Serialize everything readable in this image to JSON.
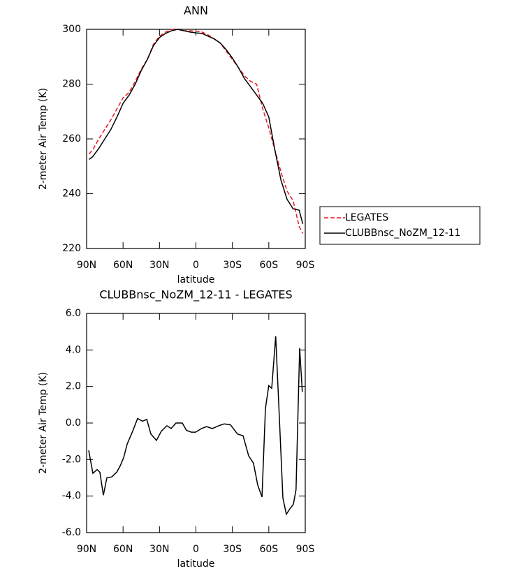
{
  "chart_data": [
    {
      "type": "line",
      "title": "ANN",
      "xlabel": "latitude",
      "ylabel": "2-meter Air Temp (K)",
      "x": [
        88,
        85,
        80,
        75,
        70,
        65,
        60,
        55,
        50,
        45,
        40,
        35,
        30,
        25,
        20,
        15,
        10,
        5,
        0,
        -5,
        -10,
        -15,
        -20,
        -25,
        -30,
        -35,
        -40,
        -45,
        -50,
        -55,
        -60,
        -65,
        -70,
        -75,
        -80,
        -85,
        -88
      ],
      "series": [
        {
          "name": "LEGATES",
          "color": "#e8191e",
          "dash": true,
          "values": [
            254.5,
            256,
            260,
            263.5,
            267,
            271,
            275,
            277,
            281,
            285.5,
            289,
            294.5,
            297.5,
            299,
            300,
            300,
            299.5,
            299.5,
            299.3,
            299,
            298,
            296.5,
            295,
            292,
            289,
            286,
            283,
            281,
            280,
            271,
            264,
            256,
            248,
            241,
            237.5,
            228,
            225.5
          ]
        },
        {
          "name": "CLUBBnsc_NoZM_12-11",
          "color": "#000000",
          "dash": false,
          "values": [
            252.5,
            253.5,
            256.5,
            260,
            263.5,
            268,
            273,
            276,
            280,
            285,
            289,
            294,
            297,
            298.5,
            299.5,
            300,
            299.5,
            299,
            298.7,
            298.5,
            297.5,
            296.5,
            295,
            292.5,
            289.5,
            286,
            282,
            279,
            276,
            273,
            268,
            256,
            245,
            238,
            234.5,
            234,
            229
          ]
        }
      ],
      "xlim": [
        90,
        -90
      ],
      "xticks": [
        {
          "value": 90,
          "label": "90N"
        },
        {
          "value": 60,
          "label": "60N"
        },
        {
          "value": 30,
          "label": "30N"
        },
        0,
        {
          "value": -30,
          "label": "30S"
        },
        {
          "value": -60,
          "label": "60S"
        },
        {
          "value": -90,
          "label": "90S"
        }
      ],
      "ylim": [
        220,
        300
      ],
      "yticks": [
        220,
        240,
        260,
        280,
        300
      ],
      "legend": "right"
    },
    {
      "type": "line",
      "title": "CLUBBnsc_NoZM_12-11 - LEGATES",
      "xlabel": "latitude",
      "ylabel": "2-meter Air Temp (K)",
      "x": [
        88.3,
        84.8,
        81.4,
        79.1,
        76.2,
        73.3,
        69.3,
        65.3,
        62.4,
        59.5,
        56.6,
        52.1,
        48.0,
        44.0,
        40.5,
        37.1,
        32.5,
        28.5,
        23.9,
        20.4,
        16.4,
        11.2,
        7.8,
        3.8,
        0.3,
        -4.6,
        -8.6,
        -13.5,
        -18.7,
        -23.3,
        -28.4,
        -34.2,
        -38.8,
        -43.4,
        -47.4,
        -50.9,
        -54.4,
        -57.2,
        -60.0,
        -62.4,
        -65.7,
        -68.7,
        -71.6,
        -74.4,
        -77.3,
        -80.2,
        -82.4,
        -85.4,
        -87.6
      ],
      "series": [
        {
          "color": "#000000",
          "dash": false,
          "values": [
            -1.5,
            -2.75,
            -2.55,
            -2.7,
            -3.95,
            -3.0,
            -2.95,
            -2.7,
            -2.35,
            -1.9,
            -1.15,
            -0.45,
            0.25,
            0.1,
            0.2,
            -0.6,
            -0.95,
            -0.45,
            -0.15,
            -0.3,
            0,
            0,
            -0.4,
            -0.5,
            -0.5,
            -0.3,
            -0.2,
            -0.3,
            -0.15,
            -0.05,
            -0.1,
            -0.6,
            -0.7,
            -1.8,
            -2.2,
            -3.4,
            -4.05,
            0.8,
            2.05,
            1.9,
            4.75,
            0.25,
            -4.1,
            -5.0,
            -4.7,
            -4.45,
            -3.65,
            4.1,
            1.7
          ]
        }
      ],
      "xlim": [
        90,
        -90
      ],
      "xticks": [
        {
          "value": 90,
          "label": "90N"
        },
        {
          "value": 60,
          "label": "60N"
        },
        {
          "value": 30,
          "label": "30N"
        },
        0,
        {
          "value": -30,
          "label": "30S"
        },
        {
          "value": -60,
          "label": "60S"
        },
        {
          "value": -90,
          "label": "90S"
        }
      ],
      "ylim": [
        -6,
        6
      ],
      "yticks": [
        {
          "value": -6,
          "label": "-6.0"
        },
        {
          "value": -4,
          "label": "-4.0"
        },
        {
          "value": -2,
          "label": "-2.0"
        },
        {
          "value": 0,
          "label": "0.0"
        },
        {
          "value": 2,
          "label": "2.0"
        },
        {
          "value": 4,
          "label": "4.0"
        },
        {
          "value": 6,
          "label": "6.0"
        }
      ]
    }
  ]
}
